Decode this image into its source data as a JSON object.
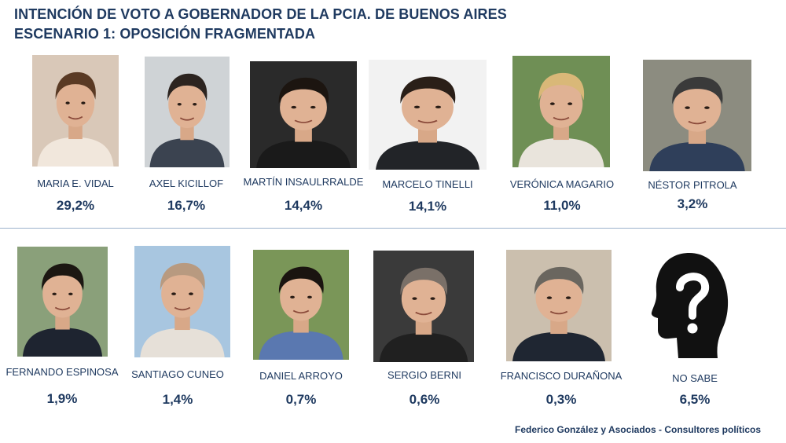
{
  "chart_data": {
    "type": "table",
    "title": "INTENCIÓN DE VOTO A GOBERNADOR DE LA PCIA. DE BUENOS AIRES",
    "subtitle": "ESCENARIO 1: OPOSICIÓN FRAGMENTADA",
    "source": "Federico González y Asociados - Consultores políticos",
    "candidates": [
      {
        "name": "MARIA E. VIDAL",
        "pct_label": "29,2%",
        "value": 29.2,
        "icon": "portrait-photo"
      },
      {
        "name": "AXEL KICILLOF",
        "pct_label": "16,7%",
        "value": 16.7,
        "icon": "portrait-photo"
      },
      {
        "name": "MARTÍN INSAULRRALDE",
        "pct_label": "14,4%",
        "value": 14.4,
        "icon": "portrait-photo"
      },
      {
        "name": "MARCELO TINELLI",
        "pct_label": "14,1%",
        "value": 14.1,
        "icon": "portrait-photo"
      },
      {
        "name": "VERÓNICA MAGARIO",
        "pct_label": "11,0%",
        "value": 11.0,
        "icon": "portrait-photo"
      },
      {
        "name": "NÉSTOR PITROLA",
        "pct_label": "3,2%",
        "value": 3.2,
        "icon": "portrait-photo"
      },
      {
        "name": "FERNANDO ESPINOSA",
        "pct_label": "1,9%",
        "value": 1.9,
        "icon": "portrait-photo"
      },
      {
        "name": "SANTIAGO CUNEO",
        "pct_label": "1,4%",
        "value": 1.4,
        "icon": "portrait-photo"
      },
      {
        "name": "DANIEL ARROYO",
        "pct_label": "0,7%",
        "value": 0.7,
        "icon": "portrait-photo"
      },
      {
        "name": "SERGIO BERNI",
        "pct_label": "0,6%",
        "value": 0.6,
        "icon": "portrait-photo"
      },
      {
        "name": "FRANCISCO DURAÑONA",
        "pct_label": "0,3%",
        "value": 0.3,
        "icon": "portrait-photo"
      },
      {
        "name": "NO SABE",
        "pct_label": "6,5%",
        "value": 6.5,
        "icon": "question-head-icon"
      }
    ]
  },
  "colors": {
    "text": "#1f3a60",
    "divider": "#9db3cc",
    "silhouette": "#111111"
  }
}
